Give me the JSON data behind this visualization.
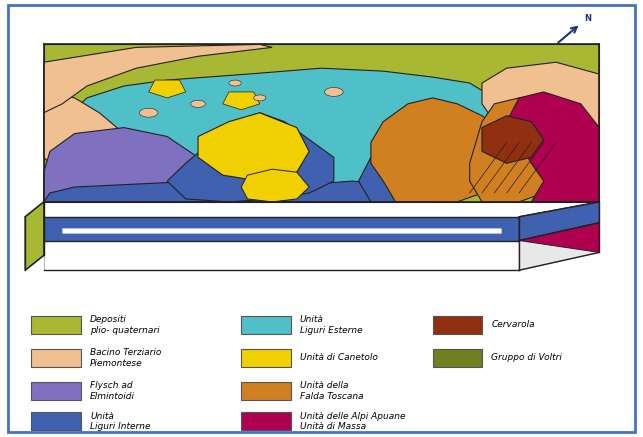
{
  "figure_bg": "#ffffff",
  "border_color": "#4472c4",
  "border_linewidth": 2.0,
  "legend_items": [
    {
      "label": "Depositi\nplio- quaternari",
      "color": "#a8b832",
      "col": 0,
      "row": 0
    },
    {
      "label": "Bacino Terziario\nPiemontese",
      "color": "#f0c090",
      "col": 0,
      "row": 1
    },
    {
      "label": "Flysch ad\nElmintoidi",
      "color": "#8070c0",
      "col": 0,
      "row": 2
    },
    {
      "label": "Unità\nLiguri Interne",
      "color": "#4060b0",
      "col": 0,
      "row": 3
    },
    {
      "label": "Unità\nLiguri Esterne",
      "color": "#50c0c8",
      "col": 1,
      "row": 0
    },
    {
      "label": "Unità di Canetolo",
      "color": "#f0d000",
      "col": 1,
      "row": 1
    },
    {
      "label": "Unità della\nFalda Toscana",
      "color": "#d08020",
      "col": 1,
      "row": 2
    },
    {
      "label": "Unità delle Alpi Apuane\nUnità di Massa",
      "color": "#b00050",
      "col": 1,
      "row": 3
    },
    {
      "label": "Cervarola",
      "color": "#903010",
      "col": 2,
      "row": 0
    },
    {
      "label": "Gruppo di Voltri",
      "color": "#708020",
      "col": 2,
      "row": 1
    }
  ],
  "colors": {
    "olive": "#a8b832",
    "peach": "#f0c090",
    "purple": "#8070c0",
    "blue": "#4060b0",
    "cyan": "#50c0c8",
    "yellow": "#f0d000",
    "ochre": "#d08020",
    "crimson": "#b00050",
    "brown": "#903010",
    "voltri": "#708020",
    "white": "#ffffff",
    "outline": "#222222",
    "lt_gray": "#e8e8e8"
  }
}
